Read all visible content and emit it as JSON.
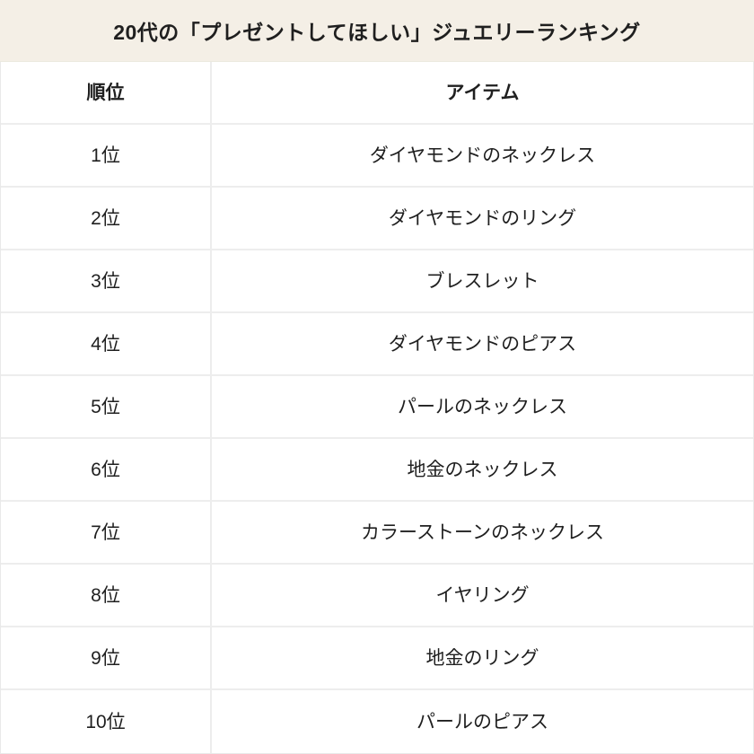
{
  "page": {
    "title": "20代の「プレゼントしてほしい」ジュエリーランキング"
  },
  "colors": {
    "title_background": "#f4efe6",
    "grid_line": "#ededed",
    "text": "#1f1f1f",
    "table_background": "#ffffff"
  },
  "table": {
    "headers": {
      "rank": "順位",
      "item": "アイテム"
    },
    "rows": [
      {
        "rank": "1位",
        "item": "ダイヤモンドのネックレス"
      },
      {
        "rank": "2位",
        "item": "ダイヤモンドのリング"
      },
      {
        "rank": "3位",
        "item": "ブレスレット"
      },
      {
        "rank": "4位",
        "item": "ダイヤモンドのピアス"
      },
      {
        "rank": "5位",
        "item": "パールのネックレス"
      },
      {
        "rank": "6位",
        "item": "地金のネックレス"
      },
      {
        "rank": "7位",
        "item": "カラーストーンのネックレス"
      },
      {
        "rank": "8位",
        "item": "イヤリング"
      },
      {
        "rank": "9位",
        "item": "地金のリング"
      },
      {
        "rank": "10位",
        "item": "パールのピアス"
      }
    ]
  },
  "chart_data": {
    "type": "table",
    "title": "20代の「プレゼントしてほしい」ジュエリーランキング",
    "columns": [
      "順位",
      "アイテム"
    ],
    "rows": [
      [
        "1位",
        "ダイヤモンドのネックレス"
      ],
      [
        "2位",
        "ダイヤモンドのリング"
      ],
      [
        "3位",
        "ブレスレット"
      ],
      [
        "4位",
        "ダイヤモンドのピアス"
      ],
      [
        "5位",
        "パールのネックレス"
      ],
      [
        "6位",
        "地金のネックレス"
      ],
      [
        "7位",
        "カラーストーンのネックレス"
      ],
      [
        "8位",
        "イヤリング"
      ],
      [
        "9位",
        "地金のリング"
      ],
      [
        "10位",
        "パールのピアス"
      ]
    ]
  }
}
